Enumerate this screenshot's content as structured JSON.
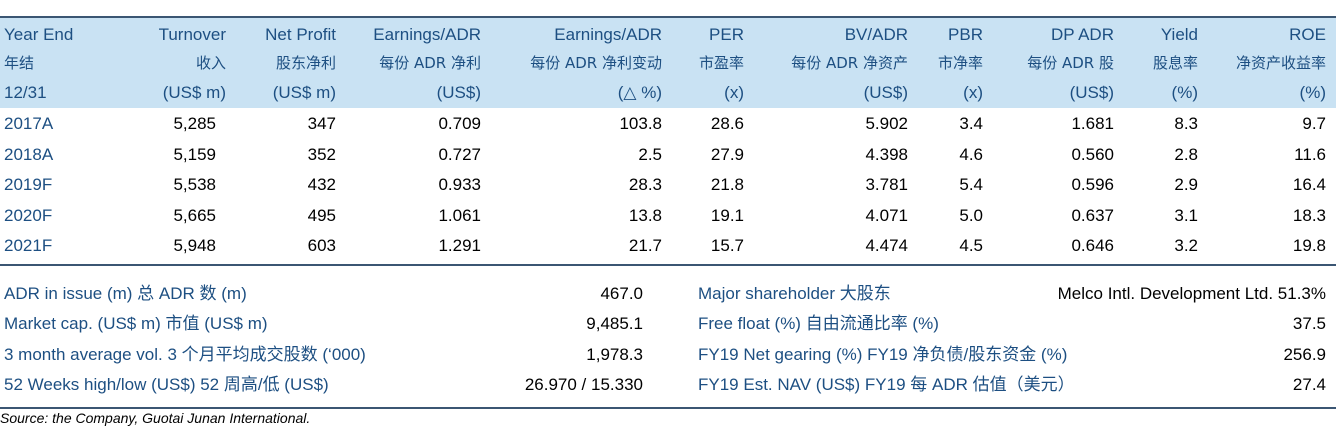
{
  "header": {
    "row1": [
      "Year End",
      "Turnover",
      "Net Profit",
      "Earnings/ADR",
      "Earnings/ADR",
      "PER",
      "BV/ADR",
      "PBR",
      "DP ADR",
      "Yield",
      "ROE"
    ],
    "row2": [
      "年结",
      "收入",
      "股东净利",
      "每份 ADR 净利",
      "每份 ADR 净利变动",
      "市盈率",
      "每份 ADR 净资产",
      "市净率",
      "每份 ADR 股",
      "股息率",
      "净资产收益率"
    ],
    "row3": [
      "12/31",
      "(US$ m)",
      "(US$ m)",
      "(US$)",
      "(△ %)",
      "(x)",
      "(US$)",
      "(x)",
      "(US$)",
      "(%)",
      "(%)"
    ]
  },
  "rows": [
    [
      "2017A",
      "5,285",
      "347",
      "0.709",
      "103.8",
      "28.6",
      "5.902",
      "3.4",
      "1.681",
      "8.3",
      "9.7"
    ],
    [
      "2018A",
      "5,159",
      "352",
      "0.727",
      "2.5",
      "27.9",
      "4.398",
      "4.6",
      "0.560",
      "2.8",
      "11.6"
    ],
    [
      "2019F",
      "5,538",
      "432",
      "0.933",
      "28.3",
      "21.8",
      "3.781",
      "5.4",
      "0.596",
      "2.9",
      "16.4"
    ],
    [
      "2020F",
      "5,665",
      "495",
      "1.061",
      "13.8",
      "19.1",
      "4.071",
      "5.0",
      "0.637",
      "3.1",
      "18.3"
    ],
    [
      "2021F",
      "5,948",
      "603",
      "1.291",
      "21.7",
      "15.7",
      "4.474",
      "4.5",
      "0.646",
      "3.2",
      "19.8"
    ]
  ],
  "summary": [
    {
      "l_label": "ADR in issue (m) 总 ADR 数 (m)",
      "l_value": "467.0",
      "r_label": "Major shareholder 大股东",
      "r_value": "Melco Intl. Development Ltd. 51.3%"
    },
    {
      "l_label": "Market cap. (US$ m) 市值 (US$ m)",
      "l_value": "9,485.1",
      "r_label": "Free float (%) 自由流通比率 (%)",
      "r_value": "37.5"
    },
    {
      "l_label": "3 month average vol. 3 个月平均成交股数 (‘000)",
      "l_value": "1,978.3",
      "r_label": "FY19 Net gearing (%) FY19 净负债/股东资金 (%)",
      "r_value": "256.9"
    },
    {
      "l_label": "52 Weeks high/low (US$) 52 周高/低 (US$)",
      "l_value": "26.970 / 15.330",
      "r_label": "FY19 Est. NAV (US$) FY19 每 ADR 估值（美元）",
      "r_value": "27.4"
    }
  ],
  "source": "Source: the Company, Guotai Junan International."
}
